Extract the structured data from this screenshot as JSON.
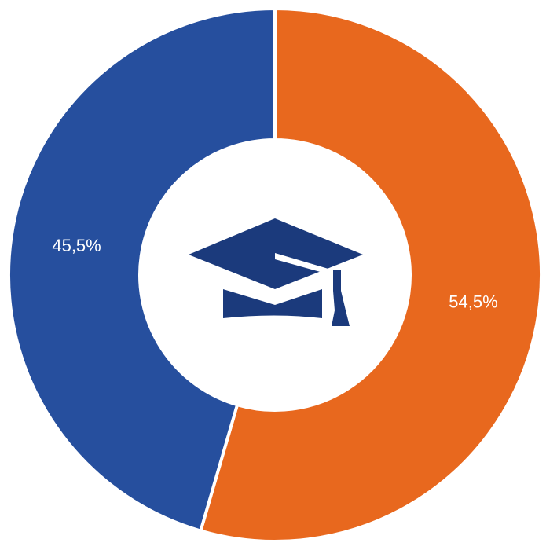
{
  "chart_data": {
    "type": "donut",
    "values": [
      54.5,
      45.5
    ],
    "value_labels": [
      "54,5%",
      "45,5%"
    ],
    "colors": [
      "#e8681e",
      "#264f9e"
    ]
  }
}
